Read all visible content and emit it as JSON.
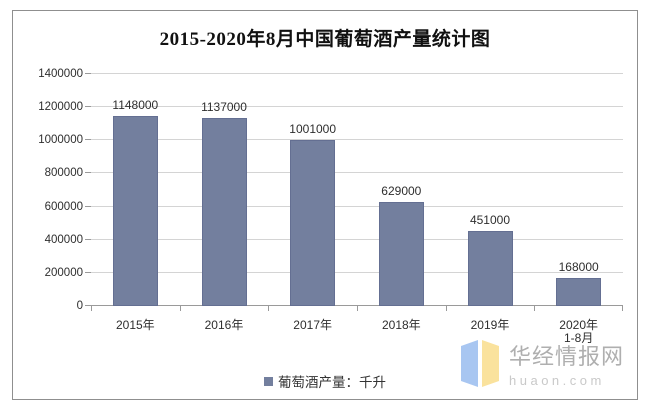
{
  "chart_data": {
    "type": "bar",
    "title": "2015-2020年8月中国葡萄酒产量统计图",
    "categories": [
      "2015年",
      "2016年",
      "2017年",
      "2018年",
      "2019年",
      "2020年 1-8月"
    ],
    "category_lines": [
      [
        "2015年"
      ],
      [
        "2016年"
      ],
      [
        "2017年"
      ],
      [
        "2018年"
      ],
      [
        "2019年"
      ],
      [
        "2020年",
        "1-8月"
      ]
    ],
    "values": [
      1148000,
      1137000,
      1001000,
      629000,
      451000,
      168000
    ],
    "data_labels": [
      "1148000",
      "1137000",
      "1001000",
      "629000",
      "451000",
      "168000"
    ],
    "xlabel": "",
    "ylabel": "",
    "ylim": [
      0,
      1400000
    ],
    "yticks": [
      0,
      200000,
      400000,
      600000,
      800000,
      1000000,
      1200000,
      1400000
    ],
    "ytick_labels": [
      "0",
      "200000",
      "400000",
      "600000",
      "800000",
      "1000000",
      "1200000",
      "1400000"
    ],
    "grid": true,
    "legend": {
      "label": "葡萄酒产量：千升",
      "position": "bottom"
    },
    "bar_color": "#737F9E",
    "bar_border_color": "#646F92",
    "grid_color": "#D4D4D4",
    "axis_color": "#9A9A9A",
    "label_color": "#2E2E2E"
  },
  "watermark": {
    "name": "华经情报网",
    "domain": "huaon.com",
    "logo_blue": "#A8C6F1",
    "logo_yellow": "#FAE29D"
  }
}
